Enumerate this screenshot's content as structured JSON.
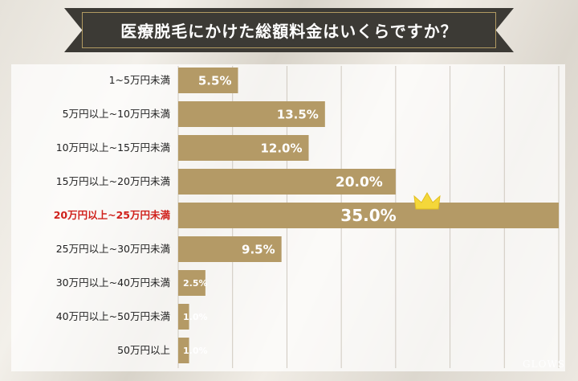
{
  "chart_data": {
    "type": "bar",
    "orientation": "horizontal",
    "title": "医療脱毛にかけた総額料金はいくらですか？",
    "categories": [
      "1~5万円未満",
      "5万円以上~10万円未満",
      "10万円以上~15万円未満",
      "15万円以上~20万円未満",
      "20万円以上~25万円未満",
      "25万円以上~30万円未満",
      "30万円以上~40万円未満",
      "40万円以上~50万円未満",
      "50万円以上"
    ],
    "values": [
      5.5,
      13.5,
      12.0,
      20.0,
      35.0,
      9.5,
      2.5,
      1.0,
      1.0
    ],
    "value_labels": [
      "5.5%",
      "13.5%",
      "12.0%",
      "20.0%",
      "35.0%",
      "9.5%",
      "2.5%",
      "1.0%",
      "1.0%"
    ],
    "highlight_index": 4,
    "xlim": [
      0,
      35
    ],
    "grid": true,
    "bar_color": "#b49a66",
    "highlight_label_color": "#d0211c",
    "crown_color": "#f4d73a"
  },
  "logo_text": "GLOWS"
}
